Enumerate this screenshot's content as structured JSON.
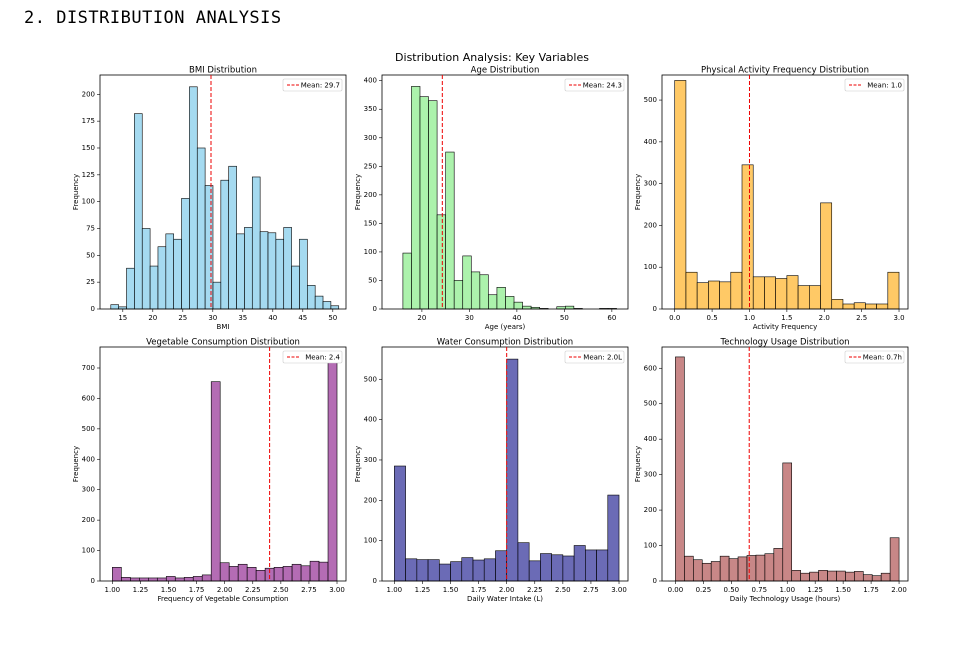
{
  "heading": "2. DISTRIBUTION ANALYSIS",
  "suptitle": "Distribution Analysis: Key Variables",
  "chart_data": [
    {
      "type": "histogram",
      "title": "BMI Distribution",
      "xlabel": "BMI",
      "ylabel": "Frequency",
      "color": "#87ceeb",
      "bins": [
        13.0,
        14.31,
        15.62,
        16.93,
        18.24,
        19.55,
        20.86,
        22.17,
        23.48,
        24.79,
        26.1,
        27.41,
        28.72,
        30.03,
        31.34,
        32.65,
        33.96,
        35.27,
        36.58,
        37.89,
        39.2,
        40.51,
        41.82,
        43.13,
        44.44,
        45.75,
        47.06,
        48.37,
        49.68,
        50.99
      ],
      "values": [
        4,
        2,
        38,
        182,
        75,
        40,
        58,
        70,
        65,
        103,
        207,
        150,
        115,
        25,
        120,
        133,
        70,
        76,
        123,
        72,
        71,
        65,
        76,
        40,
        65,
        22,
        12,
        7,
        3
      ],
      "mean": 29.7,
      "mean_label": "Mean: 29.7",
      "xlim": [
        11.2,
        52.2
      ],
      "xticks": [
        15,
        20,
        25,
        30,
        35,
        40,
        45,
        50
      ],
      "ylim": [
        0,
        218
      ],
      "yticks": [
        0,
        25,
        50,
        75,
        100,
        125,
        150,
        175,
        200
      ]
    },
    {
      "type": "histogram",
      "title": "Age Distribution",
      "xlabel": "Age (years)",
      "ylabel": "Frequency",
      "color": "#90ee90",
      "bins": [
        16.0,
        17.8,
        19.6,
        21.4,
        23.2,
        25.0,
        26.8,
        28.6,
        30.4,
        32.2,
        34.0,
        35.8,
        37.6,
        39.4,
        41.2,
        43.0,
        44.8,
        46.6,
        48.4,
        50.2,
        52.0,
        53.8,
        55.6,
        57.4,
        59.2,
        61.0
      ],
      "values": [
        98,
        390,
        372,
        365,
        165,
        275,
        50,
        93,
        65,
        60,
        25,
        38,
        22,
        12,
        5,
        3,
        1,
        0,
        4,
        5,
        1,
        0,
        0,
        1,
        1
      ],
      "mean": 24.3,
      "mean_label": "Mean: 24.3",
      "xlim": [
        11.6,
        63.4
      ],
      "xticks": [
        20,
        30,
        40,
        50,
        60
      ],
      "ylim": [
        0,
        410
      ],
      "yticks": [
        0,
        50,
        100,
        150,
        200,
        250,
        300,
        350,
        400
      ]
    },
    {
      "type": "histogram",
      "title": "Physical Activity Frequency Distribution",
      "xlabel": "Activity Frequency",
      "ylabel": "Frequency",
      "color": "#ffb733",
      "bins": [
        0,
        0.15,
        0.3,
        0.45,
        0.6,
        0.75,
        0.9,
        1.05,
        1.2,
        1.35,
        1.5,
        1.65,
        1.8,
        1.95,
        2.1,
        2.25,
        2.4,
        2.55,
        2.7,
        2.85,
        3.0
      ],
      "values": [
        547,
        88,
        63,
        67,
        65,
        88,
        345,
        77,
        77,
        73,
        80,
        56,
        56,
        254,
        23,
        12,
        15,
        12,
        12,
        88
      ],
      "mean": 1.0,
      "mean_label": "Mean: 1.0",
      "xlim": [
        -0.17,
        3.12
      ],
      "xticks": [
        {
          "value": 0,
          "label": "0.0"
        },
        0.5,
        {
          "value": 1,
          "label": "1.0"
        },
        1.5,
        {
          "value": 2,
          "label": "2.0"
        },
        2.5,
        {
          "value": 3,
          "label": "3.0"
        }
      ],
      "ylim": [
        0,
        560
      ],
      "yticks": [
        0,
        100,
        200,
        300,
        400,
        500
      ]
    },
    {
      "type": "histogram",
      "title": "Vegetable Consumption Distribution",
      "xlabel": "Frequency of Vegetable Consumption",
      "ylabel": "Frequency",
      "color": "#9b3b9b",
      "bins": [
        1.0,
        1.08,
        1.16,
        1.24,
        1.32,
        1.4,
        1.48,
        1.56,
        1.64,
        1.72,
        1.8,
        1.88,
        1.96,
        2.04,
        2.12,
        2.2,
        2.28,
        2.36,
        2.44,
        2.52,
        2.6,
        2.68,
        2.76,
        2.84,
        2.92,
        3.0
      ],
      "values": [
        45,
        12,
        10,
        10,
        10,
        10,
        15,
        10,
        12,
        15,
        20,
        655,
        60,
        48,
        55,
        45,
        35,
        42,
        45,
        48,
        55,
        50,
        65,
        62,
        728
      ],
      "mean": 2.4,
      "mean_label": "Mean: 2.4",
      "xlim": [
        0.89,
        3.08
      ],
      "xticks": [
        {
          "value": 1,
          "label": "1.00"
        },
        1.25,
        {
          "value": 1.5,
          "label": "1.50"
        },
        1.75,
        {
          "value": 2,
          "label": "2.00"
        },
        2.25,
        {
          "value": 2.5,
          "label": "2.50"
        },
        2.75,
        {
          "value": 3,
          "label": "3.00"
        }
      ],
      "ylim": [
        0,
        769
      ],
      "yticks": [
        0,
        100,
        200,
        300,
        400,
        500,
        600,
        700
      ]
    },
    {
      "type": "histogram",
      "title": "Water Consumption Distribution",
      "xlabel": "Daily Water Intake (L)",
      "ylabel": "Frequency",
      "color": "#3a3a9e",
      "bins": [
        1.0,
        1.1,
        1.2,
        1.3,
        1.4,
        1.5,
        1.6,
        1.7,
        1.8,
        1.9,
        2.0,
        2.1,
        2.2,
        2.3,
        2.4,
        2.5,
        2.6,
        2.7,
        2.8,
        2.9,
        3.0
      ],
      "values": [
        285,
        55,
        53,
        53,
        42,
        48,
        58,
        52,
        55,
        75,
        550,
        95,
        50,
        68,
        65,
        62,
        88,
        77,
        77,
        213
      ],
      "mean": 2.0,
      "mean_label": "Mean: 2.0L",
      "xlim": [
        0.89,
        3.08
      ],
      "xticks": [
        {
          "value": 1,
          "label": "1.00"
        },
        1.25,
        {
          "value": 1.5,
          "label": "1.50"
        },
        1.75,
        {
          "value": 2,
          "label": "2.00"
        },
        2.25,
        {
          "value": 2.5,
          "label": "2.50"
        },
        2.75,
        {
          "value": 3,
          "label": "3.00"
        }
      ],
      "ylim": [
        0,
        580
      ],
      "yticks": [
        0,
        100,
        200,
        300,
        400,
        500
      ]
    },
    {
      "type": "histogram",
      "title": "Technology Usage Distribution",
      "xlabel": "Daily Technology Usage (hours)",
      "ylabel": "Frequency",
      "color": "#b55f5f",
      "bins": [
        0,
        0.08,
        0.16,
        0.24,
        0.32,
        0.4,
        0.48,
        0.56,
        0.64,
        0.72,
        0.8,
        0.88,
        0.96,
        1.04,
        1.12,
        1.2,
        1.28,
        1.36,
        1.44,
        1.52,
        1.6,
        1.68,
        1.76,
        1.84,
        1.92,
        2.0
      ],
      "values": [
        632,
        70,
        60,
        50,
        55,
        70,
        63,
        68,
        72,
        73,
        77,
        92,
        333,
        30,
        22,
        25,
        30,
        28,
        28,
        25,
        27,
        18,
        15,
        22,
        122
      ],
      "mean": 0.66,
      "mean_label": "Mean: 0.7h",
      "xlim": [
        -0.12,
        2.08
      ],
      "xticks": [
        {
          "value": 0,
          "label": "0.00"
        },
        0.25,
        {
          "value": 0.5,
          "label": "0.50"
        },
        0.75,
        {
          "value": 1,
          "label": "1.00"
        },
        1.25,
        {
          "value": 1.5,
          "label": "1.50"
        },
        1.75,
        {
          "value": 2,
          "label": "2.00"
        }
      ],
      "ylim": [
        0,
        660
      ],
      "yticks": [
        0,
        100,
        200,
        300,
        400,
        500,
        600
      ]
    }
  ]
}
